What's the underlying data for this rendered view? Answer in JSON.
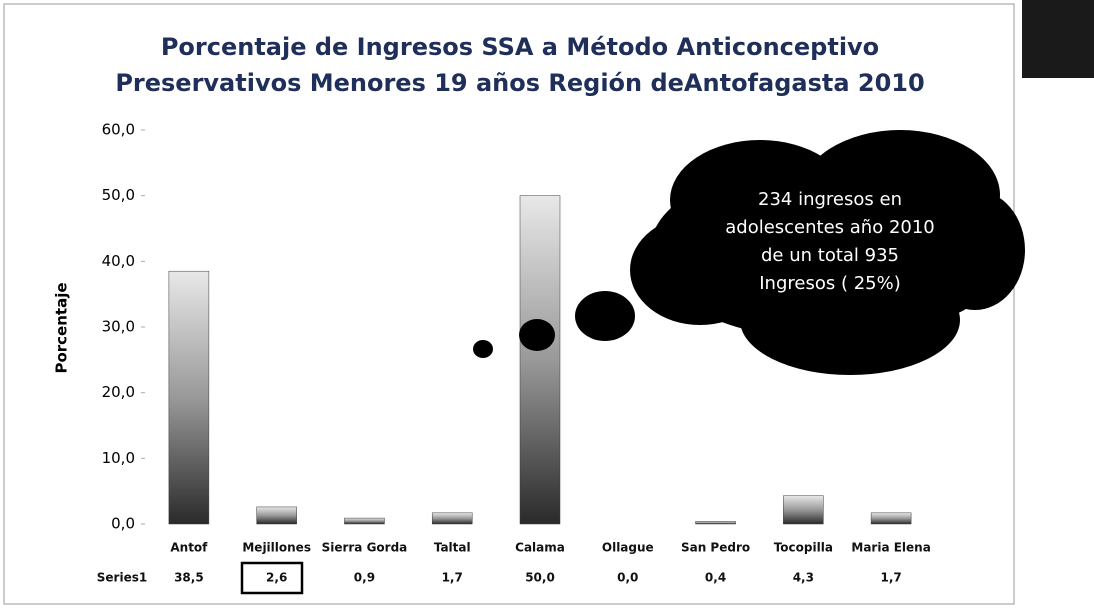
{
  "chart_data": {
    "type": "bar",
    "title": [
      "Porcentaje de Ingresos SSA a Método Anticonceptivo",
      "Preservativos Menores 19 años Región deAntofagasta 2010"
    ],
    "y_label": "Porcentaje",
    "categories": [
      "Antof",
      "Mejillones",
      "Sierra Gorda",
      "Taltal",
      "Calama",
      "Ollague",
      "San Pedro",
      "Tocopilla",
      "Maria Elena"
    ],
    "series": [
      {
        "name": "Series1",
        "color": "#3a3a3a",
        "values": [
          38.5,
          2.6,
          0.9,
          1.7,
          50.0,
          0.0,
          0.4,
          4.3,
          1.7
        ],
        "value_labels": [
          "38,5",
          "2,6",
          "0,9",
          "1,7",
          "50,0",
          "0,0",
          "0,4",
          "4,3",
          "1,7"
        ]
      }
    ],
    "ylim": [
      0,
      60
    ],
    "yticks": [
      {
        "value": 0,
        "label": "0,0"
      },
      {
        "value": 10,
        "label": "10,0"
      },
      {
        "value": 20,
        "label": "20,0"
      },
      {
        "value": 30,
        "label": "30,0"
      },
      {
        "value": 40,
        "label": "40,0"
      },
      {
        "value": 50,
        "label": "50,0"
      },
      {
        "value": 60,
        "label": "60,0"
      }
    ],
    "grid": false,
    "annotation": [
      "234 ingresos en",
      "adolescentes año 2010",
      "de un total 935",
      "Ingresos  ( 25%)"
    ]
  }
}
